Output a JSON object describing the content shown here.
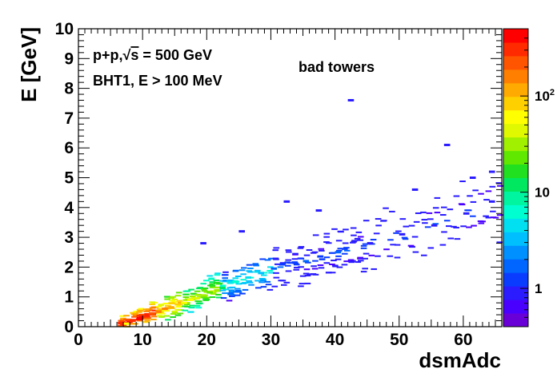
{
  "chart_data": {
    "type": "heatmap",
    "annotations": {
      "line1_prefix": "p+p,",
      "line1_sqrt": "√",
      "line1_s": "s",
      "line1_suffix": " = 500 GeV",
      "line2": "BHT1, E > 100 MeV",
      "label": "bad towers"
    },
    "xlabel": "dsmAdc",
    "ylabel": "E [GeV]",
    "xlim": [
      0,
      66
    ],
    "ylim": [
      0,
      10
    ],
    "x_ticks": [
      0,
      10,
      20,
      30,
      40,
      50,
      60
    ],
    "y_ticks": [
      0,
      1,
      2,
      3,
      4,
      5,
      6,
      7,
      8,
      9,
      10
    ],
    "colorbar": {
      "scale": "log",
      "range": [
        0.4,
        500
      ],
      "ticks": [
        {
          "value": 1,
          "label": "1"
        },
        {
          "value": 10,
          "label": "10"
        },
        {
          "value": 100,
          "label": "10",
          "exp": "2"
        }
      ],
      "palette": [
        "#6a00d8",
        "#4a00ff",
        "#2a1cff",
        "#0a3cff",
        "#0066ff",
        "#0090ff",
        "#00bfff",
        "#00e0f0",
        "#00ffd0",
        "#00f5a0",
        "#00e860",
        "#20e020",
        "#60e800",
        "#a0f000",
        "#e0f800",
        "#ffff00",
        "#ffd000",
        "#ffaa00",
        "#ff8000",
        "#ff5500",
        "#ff2a00",
        "#ff0000"
      ]
    },
    "trend": {
      "description_points": [
        [
          6,
          0.12
        ],
        [
          10,
          0.4
        ],
        [
          15,
          0.8
        ],
        [
          20,
          1.2
        ],
        [
          25,
          1.6
        ],
        [
          30,
          1.95
        ],
        [
          40,
          2.5
        ],
        [
          50,
          3.1
        ],
        [
          60,
          3.8
        ],
        [
          65,
          4.2
        ]
      ]
    },
    "cells": [
      {
        "x": 7,
        "y": 0.1,
        "count": 60
      },
      {
        "x": 8,
        "y": 0.2,
        "count": 300
      },
      {
        "x": 9,
        "y": 0.25,
        "count": 450
      },
      {
        "x": 10,
        "y": 0.35,
        "count": 350
      },
      {
        "x": 11,
        "y": 0.45,
        "count": 250
      },
      {
        "x": 12,
        "y": 0.5,
        "count": 180
      },
      {
        "x": 13,
        "y": 0.6,
        "count": 140
      },
      {
        "x": 14,
        "y": 0.65,
        "count": 110
      },
      {
        "x": 15,
        "y": 0.75,
        "count": 90
      },
      {
        "x": 16,
        "y": 0.8,
        "count": 70
      },
      {
        "x": 17,
        "y": 0.9,
        "count": 55
      },
      {
        "x": 18,
        "y": 0.95,
        "count": 40
      },
      {
        "x": 19,
        "y": 1.05,
        "count": 30
      },
      {
        "x": 20,
        "y": 1.15,
        "count": 22
      },
      {
        "x": 22,
        "y": 1.3,
        "count": 12
      },
      {
        "x": 24,
        "y": 1.5,
        "count": 6
      },
      {
        "x": 26,
        "y": 1.65,
        "count": 4
      },
      {
        "x": 28,
        "y": 1.8,
        "count": 3
      },
      {
        "x": 30,
        "y": 1.95,
        "count": 2
      },
      {
        "x": 35,
        "y": 2.2,
        "count": 2
      },
      {
        "x": 40,
        "y": 2.5,
        "count": 1.5
      },
      {
        "x": 45,
        "y": 2.8,
        "count": 1
      },
      {
        "x": 50,
        "y": 3.1,
        "count": 1
      },
      {
        "x": 55,
        "y": 3.4,
        "count": 1
      },
      {
        "x": 60,
        "y": 3.8,
        "count": 1
      },
      {
        "x": 64,
        "y": 4.2,
        "count": 1
      },
      {
        "x": 42,
        "y": 7.6,
        "count": 1
      },
      {
        "x": 57,
        "y": 6.1,
        "count": 1
      },
      {
        "x": 32,
        "y": 4.2,
        "count": 1
      },
      {
        "x": 19,
        "y": 2.8,
        "count": 1
      },
      {
        "x": 64,
        "y": 5.2,
        "count": 1
      },
      {
        "x": 61,
        "y": 5.0,
        "count": 1
      },
      {
        "x": 52,
        "y": 4.6,
        "count": 1
      },
      {
        "x": 37,
        "y": 3.9,
        "count": 1
      },
      {
        "x": 25,
        "y": 3.2,
        "count": 1
      }
    ]
  }
}
